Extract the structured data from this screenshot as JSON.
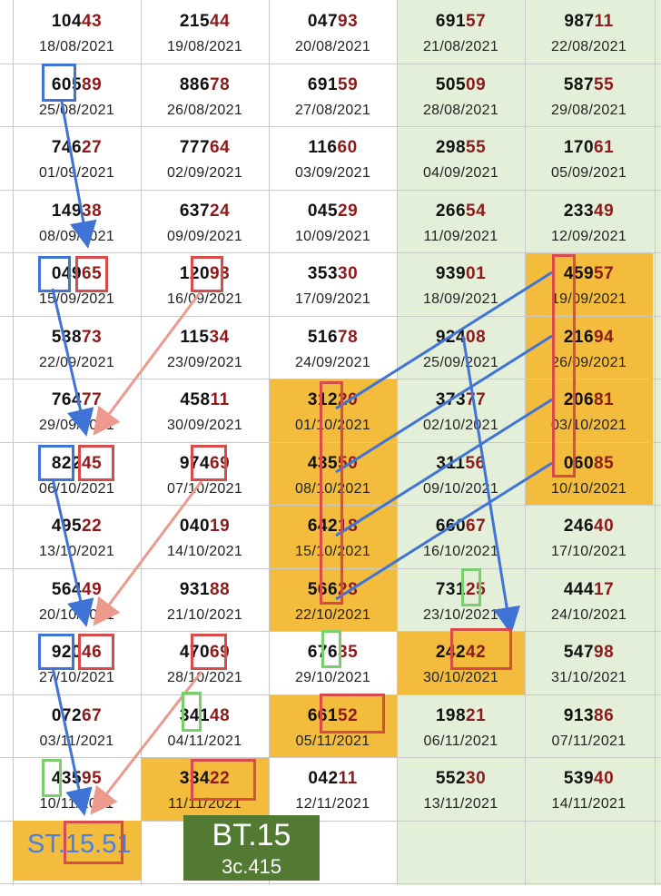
{
  "colors": {
    "dark_digits": "#111111",
    "red_digits": "#8e1b1b",
    "highlight": "#f3bc3d",
    "weekend_bg": "#e3efd9",
    "blue_mark": "#3f74d6",
    "red_mark": "#d94b4b",
    "green_mark": "#78cf6b",
    "bt_bg": "#527a33"
  },
  "rows": [
    [
      {
        "a": "104",
        "b": "43",
        "date": "18/08/2021"
      },
      {
        "a": "215",
        "b": "44",
        "date": "19/08/2021"
      },
      {
        "a": "047",
        "b": "93",
        "date": "20/08/2021"
      },
      {
        "a": "691",
        "b": "57",
        "date": "21/08/2021"
      },
      {
        "a": "987",
        "b": "11",
        "date": "22/08/2021"
      }
    ],
    [
      {
        "a": "605",
        "b": "89",
        "date": "25/08/2021"
      },
      {
        "a": "886",
        "b": "78",
        "date": "26/08/2021"
      },
      {
        "a": "691",
        "b": "59",
        "date": "27/08/2021"
      },
      {
        "a": "505",
        "b": "09",
        "date": "28/08/2021"
      },
      {
        "a": "587",
        "b": "55",
        "date": "29/08/2021"
      }
    ],
    [
      {
        "a": "746",
        "b": "27",
        "date": "01/09/2021"
      },
      {
        "a": "777",
        "b": "64",
        "date": "02/09/2021"
      },
      {
        "a": "116",
        "b": "60",
        "date": "03/09/2021"
      },
      {
        "a": "298",
        "b": "55",
        "date": "04/09/2021"
      },
      {
        "a": "170",
        "b": "61",
        "date": "05/09/2021"
      }
    ],
    [
      {
        "a": "149",
        "b": "38",
        "date": "08/09/2021"
      },
      {
        "a": "637",
        "b": "24",
        "date": "09/09/2021"
      },
      {
        "a": "045",
        "b": "29",
        "date": "10/09/2021"
      },
      {
        "a": "266",
        "b": "54",
        "date": "11/09/2021"
      },
      {
        "a": "233",
        "b": "49",
        "date": "12/09/2021"
      }
    ],
    [
      {
        "a": "049",
        "b": "65",
        "date": "15/09/2021"
      },
      {
        "a": "120",
        "b": "93",
        "date": "16/09/2021"
      },
      {
        "a": "353",
        "b": "30",
        "date": "17/09/2021"
      },
      {
        "a": "939",
        "b": "01",
        "date": "18/09/2021"
      },
      {
        "a": "459",
        "b": "57",
        "date": "19/09/2021",
        "hl": true
      }
    ],
    [
      {
        "a": "538",
        "b": "73",
        "date": "22/09/2021"
      },
      {
        "a": "115",
        "b": "34",
        "date": "23/09/2021"
      },
      {
        "a": "516",
        "b": "78",
        "date": "24/09/2021"
      },
      {
        "a": "924",
        "b": "08",
        "date": "25/09/2021"
      },
      {
        "a": "216",
        "b": "94",
        "date": "26/09/2021",
        "hl": true
      }
    ],
    [
      {
        "a": "764",
        "b": "77",
        "date": "29/09/2021"
      },
      {
        "a": "458",
        "b": "11",
        "date": "30/09/2021"
      },
      {
        "a": "312",
        "b": "20",
        "date": "01/10/2021",
        "hl": true
      },
      {
        "a": "373",
        "b": "77",
        "date": "02/10/2021"
      },
      {
        "a": "206",
        "b": "81",
        "date": "03/10/2021",
        "hl": true
      }
    ],
    [
      {
        "a": "822",
        "b": "45",
        "date": "06/10/2021"
      },
      {
        "a": "974",
        "b": "69",
        "date": "07/10/2021"
      },
      {
        "a": "435",
        "b": "50",
        "date": "08/10/2021",
        "hl": true
      },
      {
        "a": "311",
        "b": "56",
        "date": "09/10/2021"
      },
      {
        "a": "060",
        "b": "85",
        "date": "10/10/2021",
        "hl": true
      }
    ],
    [
      {
        "a": "495",
        "b": "22",
        "date": "13/10/2021"
      },
      {
        "a": "040",
        "b": "19",
        "date": "14/10/2021"
      },
      {
        "a": "642",
        "b": "18",
        "date": "15/10/2021",
        "hl": true
      },
      {
        "a": "660",
        "b": "67",
        "date": "16/10/2021"
      },
      {
        "a": "246",
        "b": "40",
        "date": "17/10/2021"
      }
    ],
    [
      {
        "a": "564",
        "b": "49",
        "date": "20/10/2021"
      },
      {
        "a": "931",
        "b": "88",
        "date": "21/10/2021"
      },
      {
        "a": "566",
        "b": "28",
        "date": "22/10/2021",
        "hl": true
      },
      {
        "a": "731",
        "b": "25",
        "date": "23/10/2021"
      },
      {
        "a": "444",
        "b": "17",
        "date": "24/10/2021"
      }
    ],
    [
      {
        "a": "920",
        "b": "46",
        "date": "27/10/2021"
      },
      {
        "a": "470",
        "b": "69",
        "date": "28/10/2021"
      },
      {
        "a": "676",
        "b": "35",
        "date": "29/10/2021"
      },
      {
        "a": "242",
        "b": "42",
        "date": "30/10/2021",
        "hl": true
      },
      {
        "a": "547",
        "b": "98",
        "date": "31/10/2021"
      }
    ],
    [
      {
        "a": "072",
        "b": "67",
        "date": "03/11/2021"
      },
      {
        "a": "341",
        "b": "48",
        "date": "04/11/2021"
      },
      {
        "a": "661",
        "b": "52",
        "date": "05/11/2021",
        "hl": true
      },
      {
        "a": "198",
        "b": "21",
        "date": "06/11/2021"
      },
      {
        "a": "913",
        "b": "86",
        "date": "07/11/2021"
      }
    ],
    [
      {
        "a": "435",
        "b": "95",
        "date": "10/11/2021"
      },
      {
        "a": "334",
        "b": "22",
        "date": "11/11/2021",
        "hl": true
      },
      {
        "a": "042",
        "b": "11",
        "date": "12/11/2021"
      },
      {
        "a": "552",
        "b": "30",
        "date": "13/11/2021"
      },
      {
        "a": "539",
        "b": "40",
        "date": "14/11/2021"
      }
    ]
  ],
  "st_label": "ST.15.51",
  "bt_label": "BT.15",
  "bt_sub": "3c.415"
}
